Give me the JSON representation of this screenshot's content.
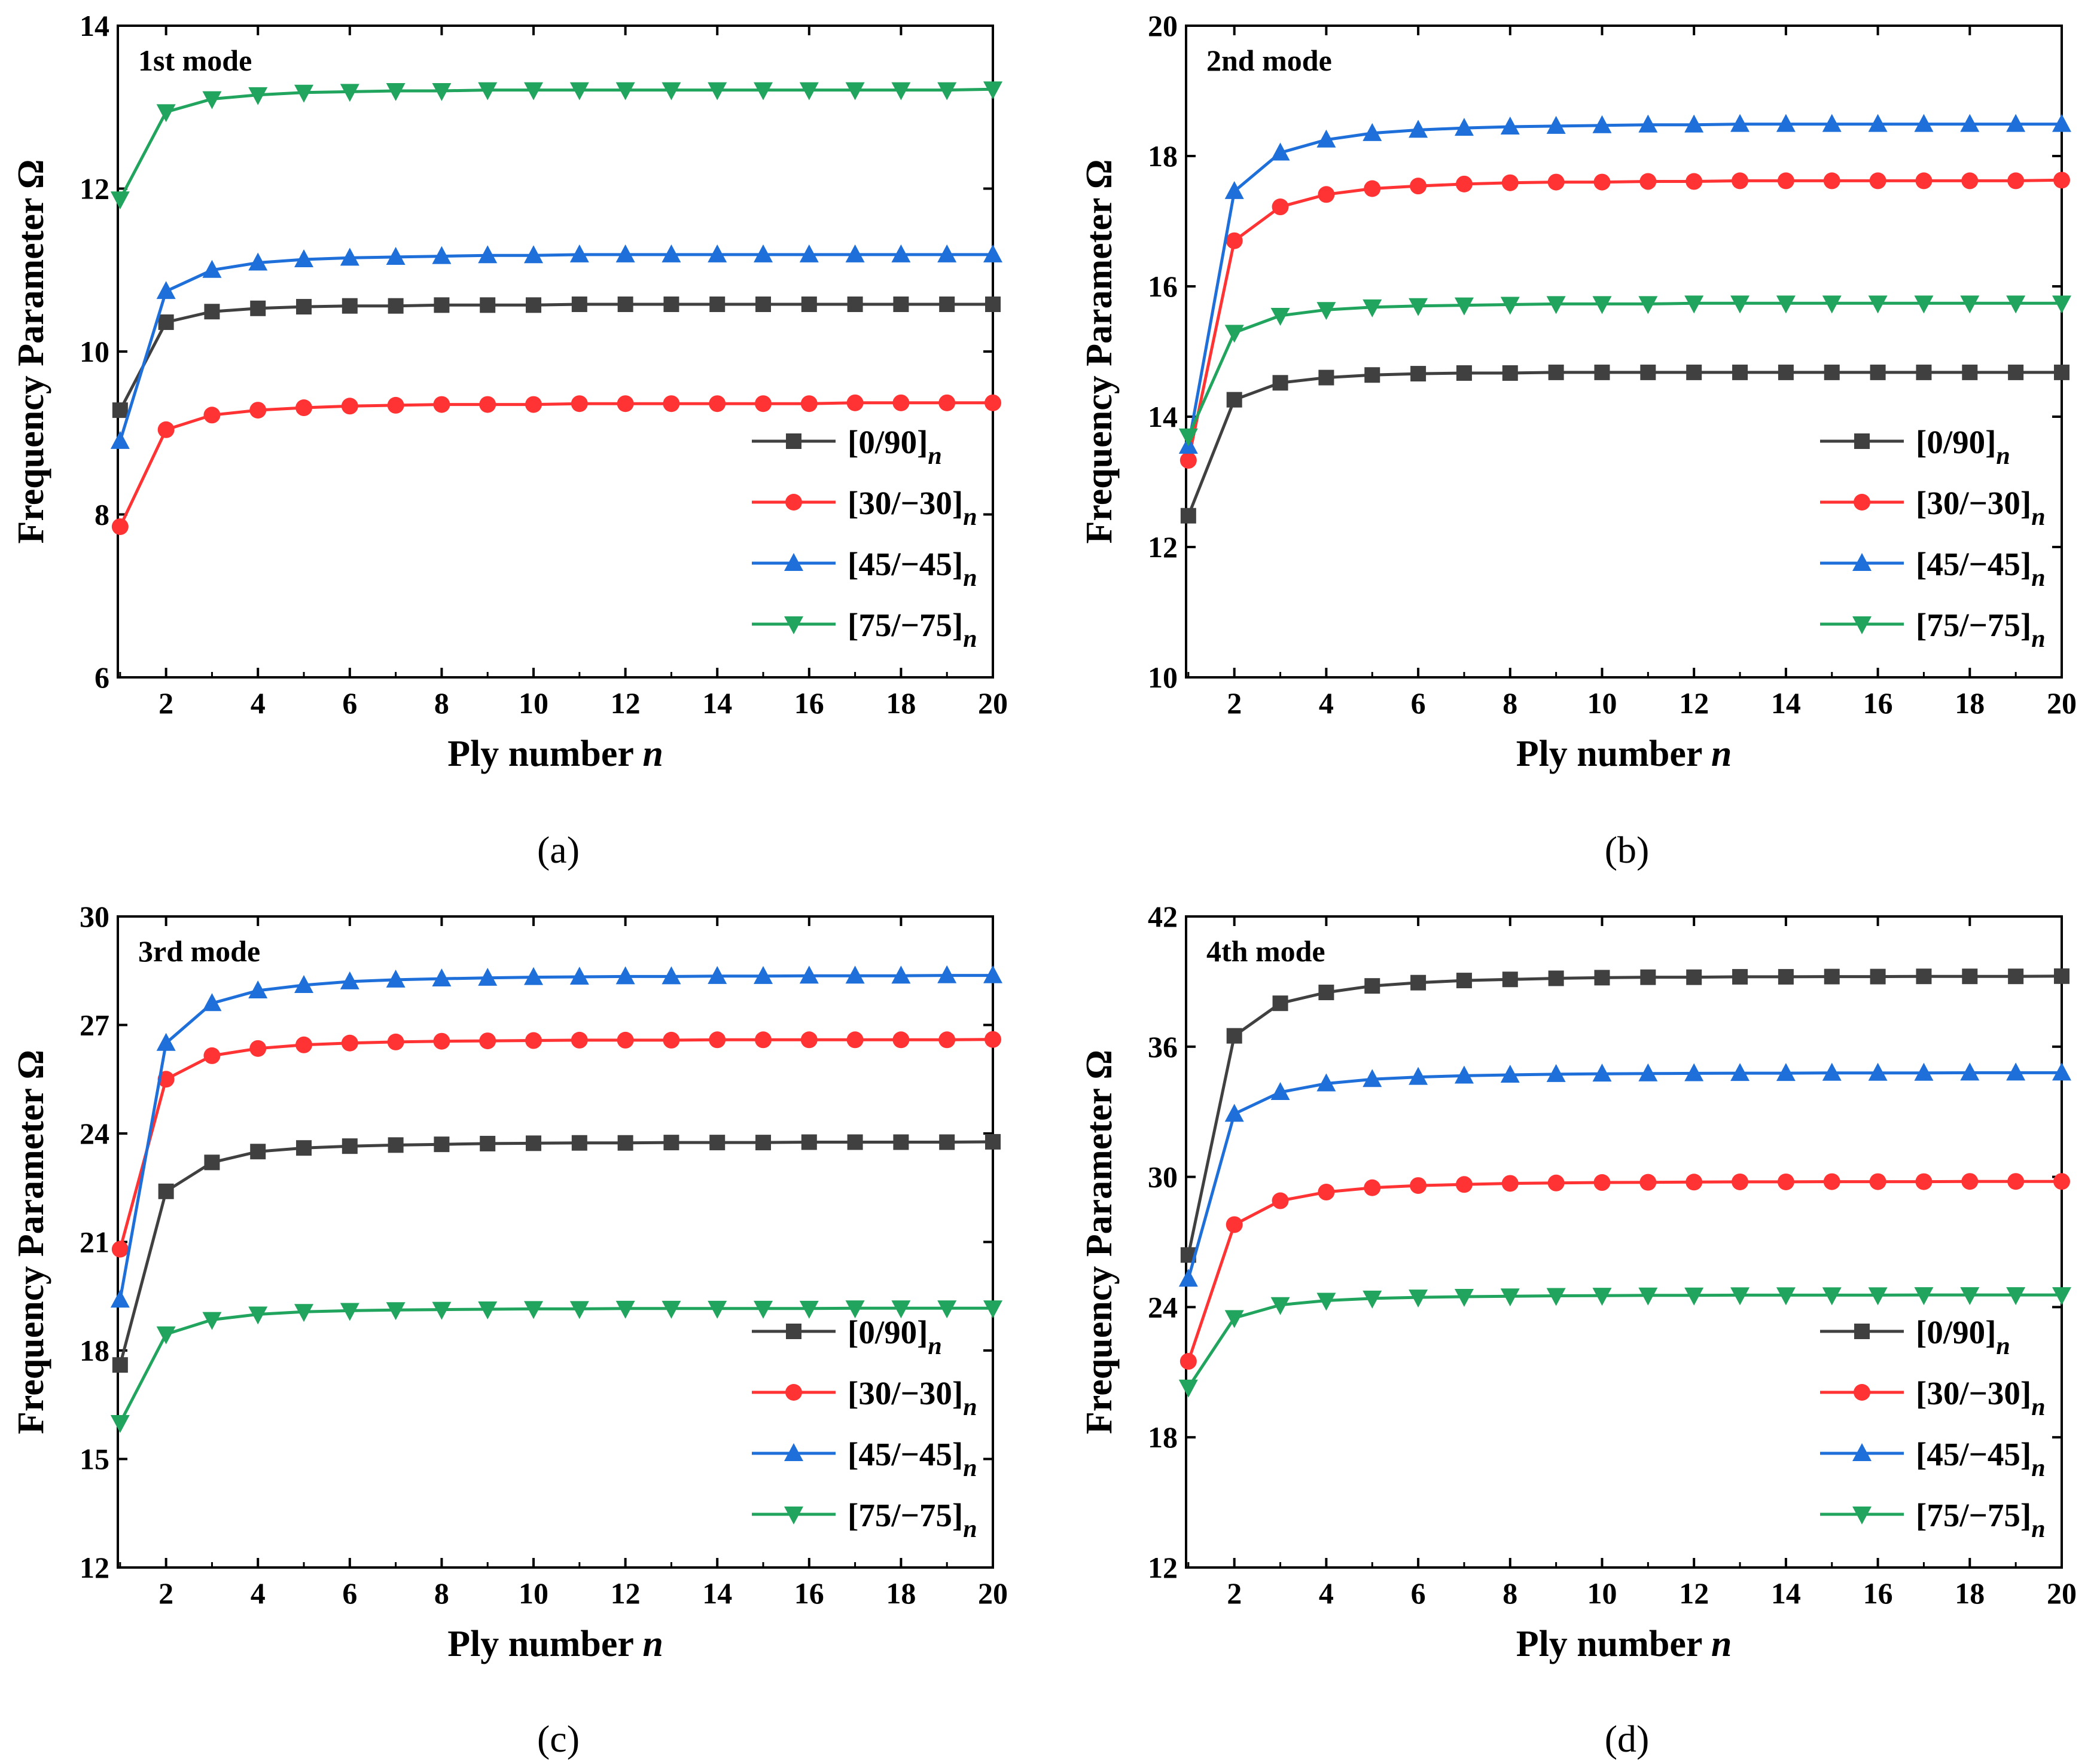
{
  "chart_data": [
    {
      "type": "line",
      "panel_label": "(a)",
      "title": "1st mode",
      "xlabel": "Ply number",
      "xlabel_var": "n",
      "ylabel": "Frequency Parameter Ω",
      "xlim": [
        0.95,
        20
      ],
      "ylim": [
        6,
        14
      ],
      "xticks": [
        2,
        4,
        6,
        8,
        10,
        12,
        14,
        16,
        18,
        20
      ],
      "yticks": [
        6,
        8,
        10,
        12,
        14
      ],
      "x": [
        1,
        2,
        3,
        4,
        5,
        6,
        7,
        8,
        9,
        10,
        11,
        12,
        13,
        14,
        15,
        16,
        17,
        18,
        19,
        20
      ],
      "legend_position": "bottom-right",
      "series": [
        {
          "name": "[0/90]",
          "subscript": "n",
          "color": "#404040",
          "marker": "square",
          "values": [
            9.28,
            10.36,
            10.49,
            10.53,
            10.55,
            10.56,
            10.56,
            10.57,
            10.57,
            10.57,
            10.58,
            10.58,
            10.58,
            10.58,
            10.58,
            10.58,
            10.58,
            10.58,
            10.58,
            10.58
          ]
        },
        {
          "name": "[30/−30]",
          "subscript": "n",
          "color": "#ff3333",
          "marker": "circle",
          "values": [
            7.85,
            9.04,
            9.22,
            9.28,
            9.31,
            9.33,
            9.34,
            9.35,
            9.35,
            9.35,
            9.36,
            9.36,
            9.36,
            9.36,
            9.36,
            9.36,
            9.37,
            9.37,
            9.37,
            9.37
          ]
        },
        {
          "name": "[45/−45]",
          "subscript": "n",
          "color": "#1e6fd9",
          "marker": "triangle-up",
          "values": [
            8.9,
            10.74,
            11.0,
            11.09,
            11.13,
            11.15,
            11.16,
            11.17,
            11.18,
            11.18,
            11.19,
            11.19,
            11.19,
            11.19,
            11.19,
            11.19,
            11.19,
            11.19,
            11.19,
            11.19
          ]
        },
        {
          "name": "[75/−75]",
          "subscript": "n",
          "color": "#21a45d",
          "marker": "triangle-down",
          "values": [
            11.87,
            12.94,
            13.1,
            13.15,
            13.18,
            13.19,
            13.2,
            13.2,
            13.21,
            13.21,
            13.21,
            13.21,
            13.21,
            13.21,
            13.21,
            13.21,
            13.21,
            13.21,
            13.21,
            13.22
          ]
        }
      ]
    },
    {
      "type": "line",
      "panel_label": "(b)",
      "title": "2nd mode",
      "xlabel": "Ply number",
      "xlabel_var": "n",
      "ylabel": "Frequency Parameter Ω",
      "xlim": [
        0.95,
        20
      ],
      "ylim": [
        10,
        20
      ],
      "xticks": [
        2,
        4,
        6,
        8,
        10,
        12,
        14,
        16,
        18,
        20
      ],
      "yticks": [
        10,
        12,
        14,
        16,
        18,
        20
      ],
      "x": [
        1,
        2,
        3,
        4,
        5,
        6,
        7,
        8,
        9,
        10,
        11,
        12,
        13,
        14,
        15,
        16,
        17,
        18,
        19,
        20
      ],
      "legend_position": "bottom-right",
      "series": [
        {
          "name": "[0/90]",
          "subscript": "n",
          "color": "#404040",
          "marker": "square",
          "values": [
            12.48,
            14.26,
            14.52,
            14.6,
            14.64,
            14.66,
            14.67,
            14.67,
            14.68,
            14.68,
            14.68,
            14.68,
            14.68,
            14.68,
            14.68,
            14.68,
            14.68,
            14.68,
            14.68,
            14.68
          ]
        },
        {
          "name": "[30/−30]",
          "subscript": "n",
          "color": "#ff3333",
          "marker": "circle",
          "values": [
            13.33,
            16.7,
            17.22,
            17.41,
            17.5,
            17.54,
            17.57,
            17.59,
            17.6,
            17.6,
            17.61,
            17.61,
            17.62,
            17.62,
            17.62,
            17.62,
            17.62,
            17.62,
            17.62,
            17.63
          ]
        },
        {
          "name": "[45/−45]",
          "subscript": "n",
          "color": "#1e6fd9",
          "marker": "triangle-up",
          "values": [
            13.55,
            17.46,
            18.05,
            18.25,
            18.35,
            18.4,
            18.43,
            18.45,
            18.46,
            18.47,
            18.48,
            18.48,
            18.49,
            18.49,
            18.49,
            18.49,
            18.49,
            18.49,
            18.49,
            18.49
          ]
        },
        {
          "name": "[75/−75]",
          "subscript": "n",
          "color": "#21a45d",
          "marker": "triangle-down",
          "values": [
            13.7,
            15.29,
            15.55,
            15.64,
            15.68,
            15.7,
            15.71,
            15.72,
            15.73,
            15.73,
            15.73,
            15.74,
            15.74,
            15.74,
            15.74,
            15.74,
            15.74,
            15.74,
            15.74,
            15.74
          ]
        }
      ]
    },
    {
      "type": "line",
      "panel_label": "(c)",
      "title": "3rd mode",
      "xlabel": "Ply number",
      "xlabel_var": "n",
      "ylabel": "Frequency Parameter Ω",
      "xlim": [
        0.95,
        20
      ],
      "ylim": [
        12,
        30
      ],
      "xticks": [
        2,
        4,
        6,
        8,
        10,
        12,
        14,
        16,
        18,
        20
      ],
      "yticks": [
        12,
        15,
        18,
        21,
        24,
        27,
        30
      ],
      "x": [
        1,
        2,
        3,
        4,
        5,
        6,
        7,
        8,
        9,
        10,
        11,
        12,
        13,
        14,
        15,
        16,
        17,
        18,
        19,
        20
      ],
      "legend_position": "bottom-right",
      "series": [
        {
          "name": "[0/90]",
          "subscript": "n",
          "color": "#404040",
          "marker": "square",
          "values": [
            17.6,
            22.4,
            23.2,
            23.5,
            23.6,
            23.65,
            23.68,
            23.7,
            23.72,
            23.73,
            23.74,
            23.74,
            23.75,
            23.75,
            23.75,
            23.76,
            23.76,
            23.76,
            23.76,
            23.77
          ]
        },
        {
          "name": "[30/−30]",
          "subscript": "n",
          "color": "#ff3333",
          "marker": "circle",
          "values": [
            20.8,
            25.5,
            26.15,
            26.35,
            26.45,
            26.5,
            26.53,
            26.55,
            26.56,
            26.57,
            26.58,
            26.58,
            26.58,
            26.59,
            26.59,
            26.59,
            26.59,
            26.59,
            26.59,
            26.6
          ]
        },
        {
          "name": "[45/−45]",
          "subscript": "n",
          "color": "#1e6fd9",
          "marker": "triangle-up",
          "values": [
            19.4,
            26.5,
            27.6,
            27.95,
            28.1,
            28.2,
            28.25,
            28.28,
            28.3,
            28.32,
            28.33,
            28.34,
            28.34,
            28.35,
            28.35,
            28.36,
            28.36,
            28.36,
            28.37,
            28.37
          ]
        },
        {
          "name": "[75/−75]",
          "subscript": "n",
          "color": "#21a45d",
          "marker": "triangle-down",
          "values": [
            16.0,
            18.45,
            18.85,
            19.0,
            19.07,
            19.1,
            19.12,
            19.13,
            19.14,
            19.15,
            19.15,
            19.16,
            19.16,
            19.16,
            19.16,
            19.16,
            19.17,
            19.17,
            19.17,
            19.17
          ]
        }
      ]
    },
    {
      "type": "line",
      "panel_label": "(d)",
      "title": "4th mode",
      "xlabel": "Ply number",
      "xlabel_var": "n",
      "ylabel": "Frequency Parameter Ω",
      "xlim": [
        0.95,
        20
      ],
      "ylim": [
        12,
        42
      ],
      "xticks": [
        2,
        4,
        6,
        8,
        10,
        12,
        14,
        16,
        18,
        20
      ],
      "yticks": [
        12,
        18,
        24,
        30,
        36,
        42
      ],
      "x": [
        1,
        2,
        3,
        4,
        5,
        6,
        7,
        8,
        9,
        10,
        11,
        12,
        13,
        14,
        15,
        16,
        17,
        18,
        19,
        20
      ],
      "legend_position": "bottom-right",
      "series": [
        {
          "name": "[0/90]",
          "subscript": "n",
          "color": "#404040",
          "marker": "square",
          "values": [
            26.4,
            36.5,
            38.0,
            38.5,
            38.8,
            38.95,
            39.05,
            39.1,
            39.15,
            39.18,
            39.2,
            39.2,
            39.22,
            39.22,
            39.23,
            39.23,
            39.24,
            39.24,
            39.24,
            39.25
          ]
        },
        {
          "name": "[30/−30]",
          "subscript": "n",
          "color": "#ff3333",
          "marker": "circle",
          "values": [
            21.5,
            27.8,
            28.9,
            29.3,
            29.5,
            29.6,
            29.65,
            29.7,
            29.72,
            29.74,
            29.75,
            29.76,
            29.77,
            29.77,
            29.78,
            29.78,
            29.78,
            29.79,
            29.79,
            29.79
          ]
        },
        {
          "name": "[45/−45]",
          "subscript": "n",
          "color": "#1e6fd9",
          "marker": "triangle-up",
          "values": [
            25.3,
            32.9,
            33.9,
            34.3,
            34.5,
            34.6,
            34.66,
            34.7,
            34.73,
            34.75,
            34.76,
            34.77,
            34.78,
            34.78,
            34.79,
            34.79,
            34.79,
            34.8,
            34.8,
            34.8
          ]
        },
        {
          "name": "[75/−75]",
          "subscript": "n",
          "color": "#21a45d",
          "marker": "triangle-down",
          "values": [
            20.3,
            23.5,
            24.1,
            24.3,
            24.4,
            24.45,
            24.48,
            24.5,
            24.52,
            24.53,
            24.54,
            24.54,
            24.55,
            24.55,
            24.55,
            24.55,
            24.56,
            24.56,
            24.56,
            24.56
          ]
        }
      ]
    }
  ]
}
